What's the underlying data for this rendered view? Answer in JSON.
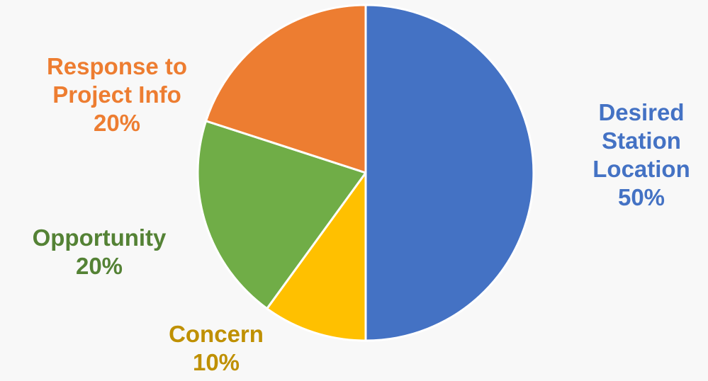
{
  "chart_data": {
    "type": "pie",
    "start_angle_deg": 0,
    "direction": "clockwise",
    "slices": [
      {
        "label_lines": [
          "Desired",
          "Station",
          "Location"
        ],
        "percent_label": "50%",
        "value": 50,
        "color": "#4472c4",
        "label_color": "#4472c4"
      },
      {
        "label_lines": [
          "Concern"
        ],
        "percent_label": "10%",
        "value": 10,
        "color": "#ffc000",
        "label_color": "#bf9000"
      },
      {
        "label_lines": [
          "Opportunity"
        ],
        "percent_label": "20%",
        "value": 20,
        "color": "#70ad47",
        "label_color": "#548235"
      },
      {
        "label_lines": [
          "Response to",
          "Project Info"
        ],
        "percent_label": "20%",
        "value": 20,
        "color": "#ed7d31",
        "label_color": "#ed7d31"
      }
    ]
  }
}
